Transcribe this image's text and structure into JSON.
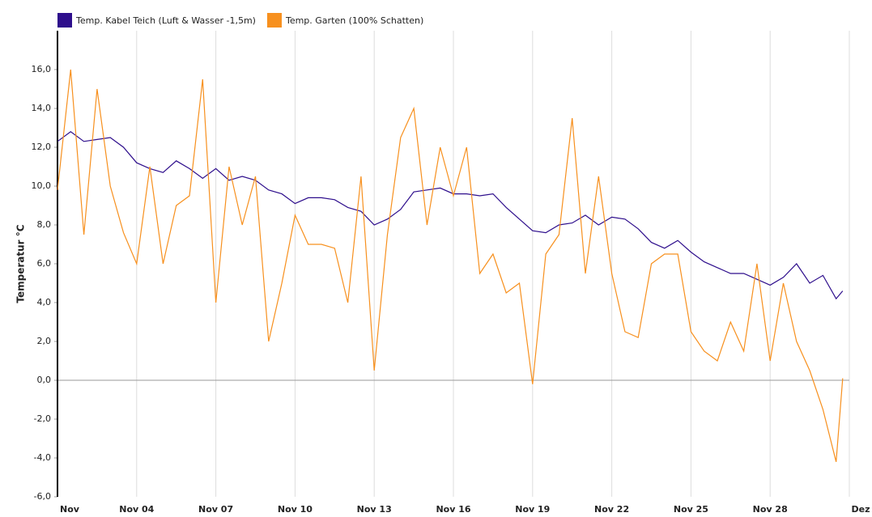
{
  "chart_data": {
    "type": "line",
    "y_label": "Temperatur °C",
    "x": [
      1,
      1.5,
      2,
      2.5,
      3,
      3.5,
      4,
      4.5,
      5,
      5.5,
      6,
      6.5,
      7,
      7.5,
      8,
      8.5,
      9,
      9.5,
      10,
      10.5,
      11,
      11.5,
      12,
      12.5,
      13,
      13.5,
      14,
      14.5,
      15,
      15.5,
      16,
      16.5,
      17,
      17.5,
      18,
      18.5,
      19,
      19.5,
      20,
      20.5,
      21,
      21.5,
      22,
      22.5,
      23,
      23.5,
      24,
      24.5,
      25,
      25.5,
      26,
      26.5,
      27,
      27.5,
      28,
      28.5,
      29,
      29.5,
      30,
      30.5,
      30.75
    ],
    "series": [
      {
        "name": "Temp. Kabel Teich (Luft & Wasser -1,5m)",
        "color": "#2e0e8c",
        "values": [
          12.3,
          12.8,
          12.3,
          12.4,
          12.5,
          12.0,
          11.2,
          10.9,
          10.7,
          11.3,
          10.9,
          10.4,
          10.9,
          10.3,
          10.5,
          10.3,
          9.8,
          9.6,
          9.1,
          9.4,
          9.4,
          9.3,
          8.9,
          8.7,
          8.0,
          8.3,
          8.8,
          9.7,
          9.8,
          9.9,
          9.6,
          9.6,
          9.5,
          9.6,
          8.9,
          8.3,
          7.7,
          7.6,
          8.0,
          8.1,
          8.5,
          8.0,
          8.4,
          8.3,
          7.8,
          7.1,
          6.8,
          7.2,
          6.6,
          6.1,
          5.8,
          5.5,
          5.5,
          5.2,
          4.9,
          5.3,
          6.0,
          5.0,
          5.4,
          4.2,
          4.6
        ]
      },
      {
        "name": "Temp. Garten (100% Schatten)",
        "color": "#f7901e",
        "values": [
          9.8,
          16.0,
          7.5,
          15.0,
          10.0,
          7.6,
          6.0,
          11.0,
          6.0,
          9.0,
          9.5,
          15.5,
          4.0,
          11.0,
          8.0,
          10.5,
          2.0,
          5.0,
          8.5,
          7.0,
          7.0,
          6.8,
          4.0,
          10.5,
          0.5,
          7.5,
          12.5,
          14.0,
          8.0,
          12.0,
          9.5,
          12.0,
          5.5,
          6.5,
          4.5,
          5.0,
          -0.2,
          6.5,
          7.5,
          13.5,
          5.5,
          10.5,
          5.5,
          2.5,
          2.2,
          6.0,
          6.5,
          6.5,
          2.5,
          1.5,
          1.0,
          3.0,
          1.5,
          6.0,
          1.0,
          5.0,
          2.0,
          0.5,
          -1.5,
          -4.2,
          0.1
        ]
      }
    ],
    "xlim": [
      1,
      31
    ],
    "xticks": [
      {
        "value": 1,
        "label": "Nov"
      },
      {
        "value": 4,
        "label": "Nov 04"
      },
      {
        "value": 7,
        "label": "Nov 07"
      },
      {
        "value": 10,
        "label": "Nov 10"
      },
      {
        "value": 13,
        "label": "Nov 13"
      },
      {
        "value": 16,
        "label": "Nov 16"
      },
      {
        "value": 19,
        "label": "Nov 19"
      },
      {
        "value": 22,
        "label": "Nov 22"
      },
      {
        "value": 25,
        "label": "Nov 25"
      },
      {
        "value": 28,
        "label": "Nov 28"
      },
      {
        "value": 31,
        "label": "Dez"
      }
    ],
    "ylim": [
      -6,
      18
    ],
    "yticks": [
      {
        "value": -6,
        "label": "-6,0"
      },
      {
        "value": -4,
        "label": "-4,0"
      },
      {
        "value": -2,
        "label": "-2,0"
      },
      {
        "value": 0,
        "label": "0,0"
      },
      {
        "value": 2,
        "label": "2,0"
      },
      {
        "value": 4,
        "label": "4,0"
      },
      {
        "value": 6,
        "label": "6,0"
      },
      {
        "value": 8,
        "label": "8,0"
      },
      {
        "value": 10,
        "label": "10,0"
      },
      {
        "value": 12,
        "label": "12,0"
      },
      {
        "value": 14,
        "label": "14,0"
      },
      {
        "value": 16,
        "label": "16,0"
      }
    ],
    "grid": "x",
    "legend": "top-left"
  }
}
